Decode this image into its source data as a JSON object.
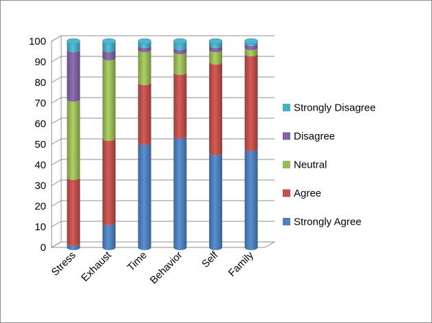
{
  "chart_data": {
    "type": "bar",
    "stacked": true,
    "three_d": true,
    "categories": [
      "Stress",
      "Exhaust",
      "Time",
      "Behavior",
      "Self",
      "Family"
    ],
    "series": [
      {
        "name": "Strongly Agree",
        "color": "#4f81bd",
        "values": [
          2,
          12,
          51,
          54,
          46,
          48
        ]
      },
      {
        "name": "Agree",
        "color": "#c0504d",
        "values": [
          32,
          41,
          29,
          31,
          44,
          46
        ]
      },
      {
        "name": "Neutral",
        "color": "#9bbb59",
        "values": [
          38,
          39,
          16,
          10,
          6,
          3
        ]
      },
      {
        "name": "Disagree",
        "color": "#8064a2",
        "values": [
          24,
          4,
          2,
          2,
          2,
          2
        ]
      },
      {
        "name": "Strongly Disagree",
        "color": "#4bacc6",
        "values": [
          4,
          4,
          2,
          3,
          2,
          1
        ]
      }
    ],
    "yticks": [
      0,
      10,
      20,
      30,
      40,
      50,
      60,
      70,
      80,
      90,
      100
    ],
    "ylim": [
      0,
      100
    ],
    "grid": true,
    "legend_position": "right"
  }
}
